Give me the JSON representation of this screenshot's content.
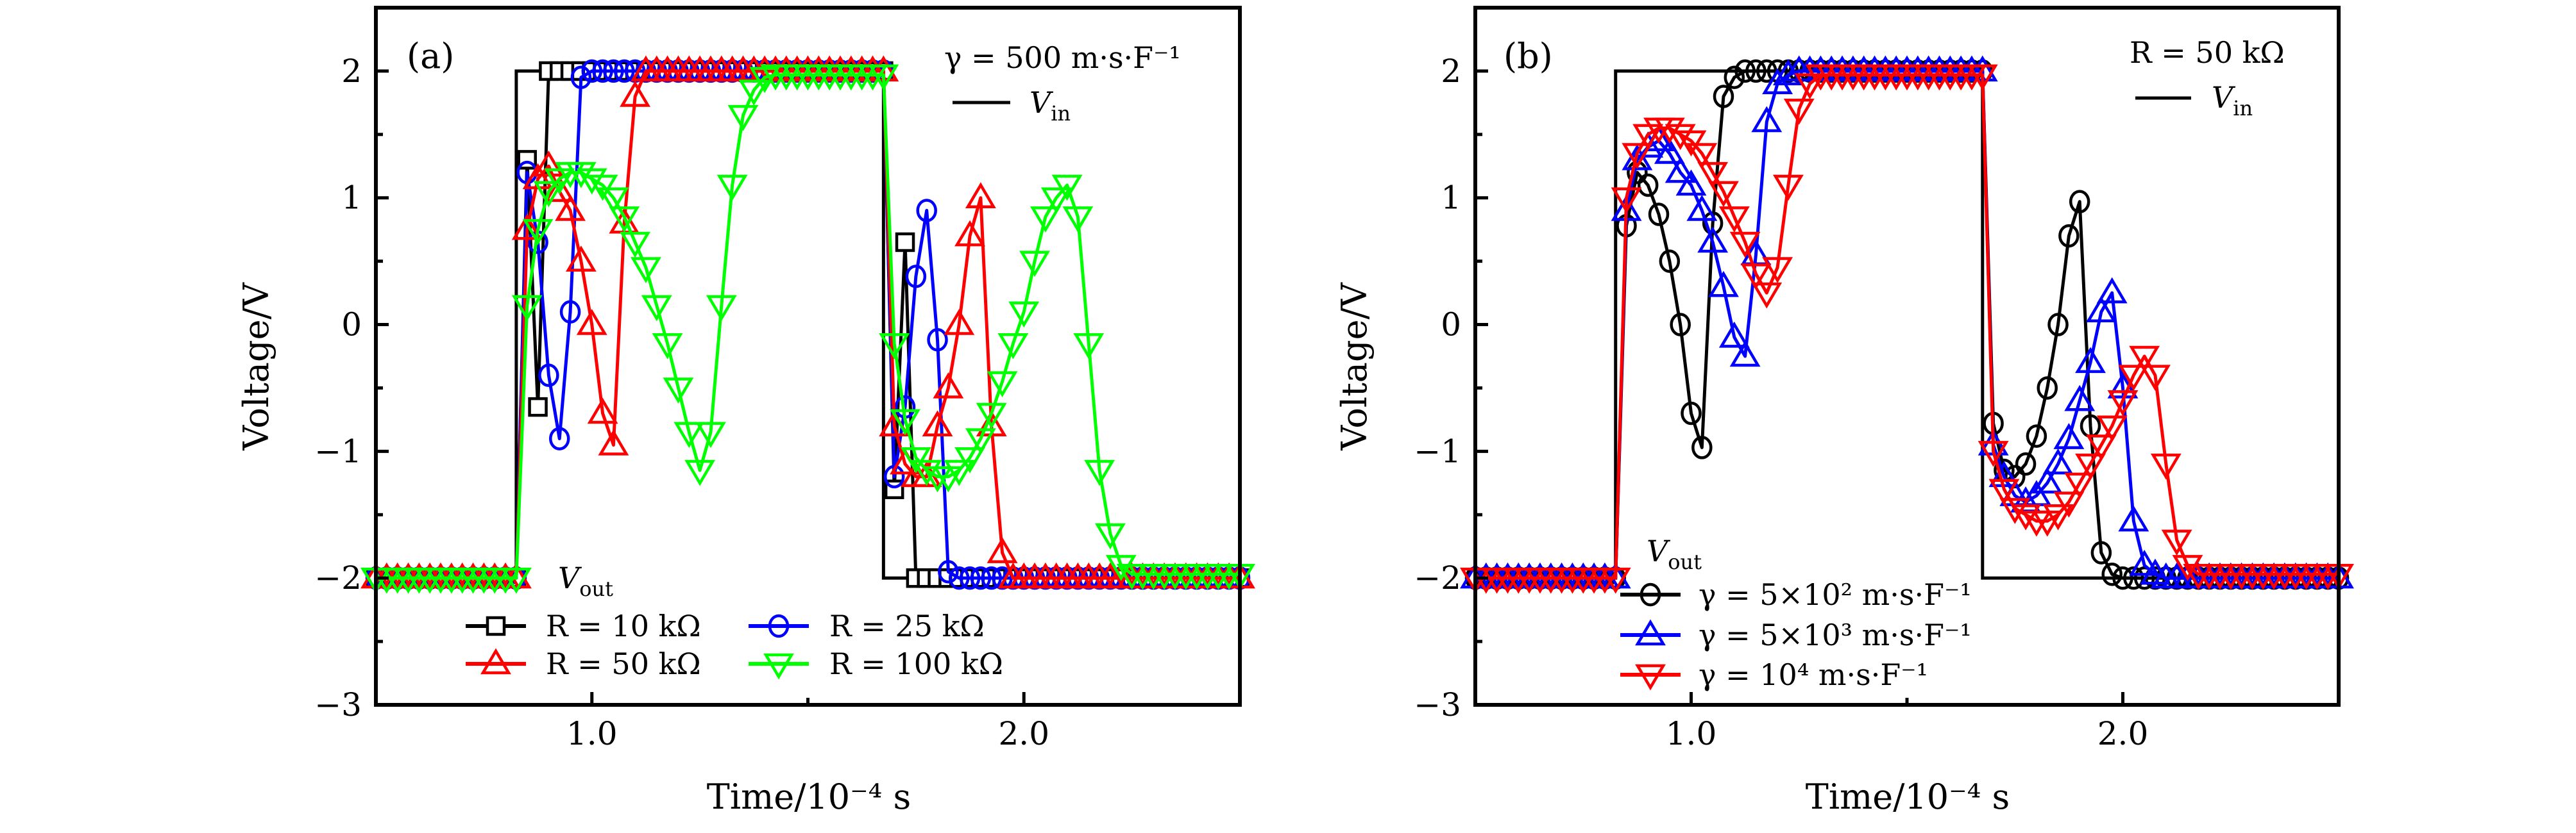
{
  "colors": {
    "black": "#000000",
    "blue": "#0000ff",
    "red": "#ff0000",
    "green": "#00ff00"
  },
  "chart_data": [
    {
      "type": "line",
      "panel_label": "(a)",
      "annotation": "γ = 500 m·s·F⁻¹",
      "xlabel": "Time/10⁻⁴ s",
      "ylabel": "Voltage/V",
      "xlim": [
        0.5,
        2.5
      ],
      "ylim": [
        -3,
        2.5
      ],
      "x_ticks": [
        1.0,
        2.0
      ],
      "x_tick_labels": [
        "1.0",
        "2.0"
      ],
      "y_ticks": [
        -3,
        -2,
        -1,
        0,
        1,
        2
      ],
      "y_tick_labels": [
        "−3",
        "−2",
        "−1",
        "0",
        "1",
        "2"
      ],
      "grid": false,
      "vin": {
        "label_main": "V",
        "label_sub": "in",
        "t": [
          0.5,
          0.825,
          0.825,
          1.675,
          1.675,
          2.5
        ],
        "v": [
          -2,
          -2,
          2,
          2,
          -2,
          -2
        ]
      },
      "vout_label": {
        "main": "V",
        "sub": "out"
      },
      "t0": 0.5,
      "dt": 0.025,
      "series": [
        {
          "name": "R = 10 kΩ",
          "color": "black",
          "marker": "square",
          "values": [
            -2,
            -2,
            -2,
            -2,
            -2,
            -2,
            -2,
            -2,
            -2,
            -2,
            -2,
            -2,
            -2,
            -2,
            1.3,
            -0.65,
            2,
            2,
            2,
            2,
            2,
            2,
            2,
            2,
            2,
            2,
            2,
            2,
            2,
            2,
            2,
            2,
            2,
            2,
            2,
            2,
            2,
            2,
            2,
            2,
            2,
            2,
            2,
            2,
            2,
            2,
            2,
            2,
            -1.3,
            0.65,
            -2,
            -2,
            -2,
            -2,
            -2,
            -2,
            -2,
            -2,
            -2,
            -2,
            -2,
            -2,
            -2,
            -2,
            -2,
            -2,
            -2,
            -2,
            -2,
            -2,
            -2,
            -2,
            -2,
            -2,
            -2,
            -2,
            -2,
            -2,
            -2,
            -2,
            -2
          ]
        },
        {
          "name": "R = 25 kΩ",
          "color": "blue",
          "marker": "circle",
          "values": [
            -2,
            -2,
            -2,
            -2,
            -2,
            -2,
            -2,
            -2,
            -2,
            -2,
            -2,
            -2,
            -2,
            -2,
            1.2,
            0.65,
            -0.4,
            -0.9,
            0.1,
            1.95,
            2,
            2,
            2,
            2,
            2,
            2,
            2,
            2,
            2,
            2,
            2,
            2,
            2,
            2,
            2,
            2,
            2,
            2,
            2,
            2,
            2,
            2,
            2,
            2,
            2,
            2,
            2,
            2,
            -1.2,
            -0.65,
            0.38,
            0.9,
            -0.12,
            -1.95,
            -2,
            -2,
            -2,
            -2,
            -2,
            -2,
            -2,
            -2,
            -2,
            -2,
            -2,
            -2,
            -2,
            -2,
            -2,
            -2,
            -2,
            -2,
            -2,
            -2,
            -2,
            -2,
            -2,
            -2,
            -2,
            -2,
            -2
          ]
        },
        {
          "name": "R = 50 kΩ",
          "color": "red",
          "marker": "triangle-up",
          "values": [
            -2,
            -2,
            -2,
            -2,
            -2,
            -2,
            -2,
            -2,
            -2,
            -2,
            -2,
            -2,
            -2,
            -2,
            0.75,
            1.15,
            1.25,
            1.05,
            0.9,
            0.5,
            0.0,
            -0.7,
            -0.95,
            0.8,
            1.8,
            2,
            2,
            2,
            2,
            2,
            2,
            2,
            2,
            2,
            2,
            2,
            2,
            2,
            2,
            2,
            2,
            2,
            2,
            2,
            2,
            2,
            2,
            2,
            -0.8,
            -1.1,
            -1.2,
            -1.2,
            -0.8,
            -0.5,
            0.0,
            0.7,
            1.0,
            -0.8,
            -1.8,
            -2,
            -2,
            -2,
            -2,
            -2,
            -2,
            -2,
            -2,
            -2,
            -2,
            -2,
            -2,
            -2,
            -2,
            -2,
            -2,
            -2,
            -2,
            -2,
            -2,
            -2,
            -2
          ]
        },
        {
          "name": "R = 100 kΩ",
          "color": "green",
          "marker": "triangle-down",
          "values": [
            -2,
            -2,
            -2,
            -2,
            -2,
            -2,
            -2,
            -2,
            -2,
            -2,
            -2,
            -2,
            -2,
            -2,
            0.15,
            0.75,
            1.05,
            1.15,
            1.2,
            1.2,
            1.15,
            1.1,
            1.0,
            0.85,
            0.65,
            0.45,
            0.15,
            -0.15,
            -0.5,
            -0.85,
            -1.15,
            -0.85,
            0.15,
            1.1,
            1.65,
            1.85,
            1.95,
            1.97,
            1.97,
            1.97,
            1.97,
            1.97,
            1.97,
            1.97,
            1.97,
            1.97,
            1.97,
            1.97,
            -0.15,
            -0.75,
            -1.05,
            -1.15,
            -1.2,
            -1.2,
            -1.15,
            -1.05,
            -0.9,
            -0.7,
            -0.45,
            -0.15,
            0.1,
            0.5,
            0.85,
            1.0,
            1.1,
            0.85,
            -0.15,
            -1.15,
            -1.65,
            -1.9,
            -1.97,
            -1.97,
            -1.97,
            -1.97,
            -1.97,
            -1.97,
            -1.97,
            -1.97,
            -1.97,
            -1.97,
            -1.97
          ]
        }
      ]
    },
    {
      "type": "line",
      "panel_label": "(b)",
      "annotation": "R = 50 kΩ",
      "xlabel": "Time/10⁻⁴ s",
      "ylabel": "Voltage/V",
      "xlim": [
        0.5,
        2.5
      ],
      "ylim": [
        -3,
        2.5
      ],
      "x_ticks": [
        1.0,
        2.0
      ],
      "x_tick_labels": [
        "1.0",
        "2.0"
      ],
      "y_ticks": [
        -3,
        -2,
        -1,
        0,
        1,
        2
      ],
      "y_tick_labels": [
        "−3",
        "−2",
        "−1",
        "0",
        "1",
        "2"
      ],
      "grid": false,
      "vin": {
        "label_main": "V",
        "label_sub": "in",
        "t": [
          0.5,
          0.825,
          0.825,
          1.675,
          1.675,
          2.5
        ],
        "v": [
          -2,
          -2,
          2,
          2,
          -2,
          -2
        ]
      },
      "vout_label": {
        "main": "V",
        "sub": "out"
      },
      "t0": 0.5,
      "dt": 0.025,
      "series": [
        {
          "name": "γ = 5×10² m·s·F⁻¹",
          "color": "black",
          "marker": "circle",
          "values": [
            -2,
            -2,
            -2,
            -2,
            -2,
            -2,
            -2,
            -2,
            -2,
            -2,
            -2,
            -2,
            -2,
            -2,
            0.78,
            1.2,
            1.1,
            0.87,
            0.5,
            0.0,
            -0.7,
            -0.97,
            0.8,
            1.8,
            1.95,
            2,
            2,
            2,
            2,
            2,
            2,
            2,
            2,
            2,
            2,
            2,
            2,
            2,
            2,
            2,
            2,
            2,
            2,
            2,
            2,
            2,
            2,
            2,
            -0.78,
            -1.15,
            -1.2,
            -1.1,
            -0.88,
            -0.5,
            0.0,
            0.7,
            0.97,
            -0.8,
            -1.8,
            -1.97,
            -2,
            -2,
            -2,
            -2,
            -2,
            -2,
            -2,
            -2,
            -2,
            -2,
            -2,
            -2,
            -2,
            -2,
            -2,
            -2,
            -2,
            -2,
            -2,
            -2,
            -2
          ]
        },
        {
          "name": "γ = 5×10³ m·s·F⁻¹",
          "color": "blue",
          "marker": "triangle-up",
          "values": [
            -2,
            -2,
            -2,
            -2,
            -2,
            -2,
            -2,
            -2,
            -2,
            -2,
            -2,
            -2,
            -2,
            -2,
            0.9,
            1.3,
            1.4,
            1.45,
            1.35,
            1.2,
            1.1,
            0.9,
            0.65,
            0.3,
            -0.1,
            -0.25,
            0.55,
            1.6,
            1.9,
            1.97,
            2,
            2,
            2,
            2,
            2,
            2,
            2,
            2,
            2,
            2,
            2,
            2,
            2,
            2,
            2,
            2,
            2,
            2,
            -0.95,
            -1.2,
            -1.35,
            -1.4,
            -1.35,
            -1.25,
            -1.1,
            -0.9,
            -0.6,
            -0.3,
            0.1,
            0.25,
            -0.5,
            -1.55,
            -1.9,
            -1.97,
            -2,
            -2,
            -2,
            -2,
            -2,
            -2,
            -2,
            -2,
            -2,
            -2,
            -2,
            -2,
            -2,
            -2,
            -2,
            -2,
            -2
          ]
        },
        {
          "name": "γ = 10⁴ m·s·F⁻¹",
          "color": "red",
          "marker": "triangle-down",
          "values": [
            -2,
            -2,
            -2,
            -2,
            -2,
            -2,
            -2,
            -2,
            -2,
            -2,
            -2,
            -2,
            -2,
            -2,
            1.0,
            1.35,
            1.5,
            1.55,
            1.55,
            1.5,
            1.45,
            1.35,
            1.2,
            1.05,
            0.85,
            0.65,
            0.4,
            0.25,
            0.45,
            1.1,
            1.7,
            1.9,
            1.97,
            1.97,
            1.97,
            1.97,
            1.97,
            1.97,
            1.97,
            1.97,
            1.97,
            1.97,
            1.97,
            1.97,
            1.97,
            1.97,
            1.97,
            1.97,
            -1.0,
            -1.3,
            -1.45,
            -1.5,
            -1.55,
            -1.55,
            -1.5,
            -1.4,
            -1.25,
            -1.1,
            -0.95,
            -0.8,
            -0.6,
            -0.4,
            -0.25,
            -0.4,
            -1.1,
            -1.7,
            -1.9,
            -1.97,
            -1.97,
            -1.97,
            -1.97,
            -1.97,
            -1.97,
            -1.97,
            -1.97,
            -1.97,
            -1.97,
            -1.97,
            -1.97,
            -1.97,
            -1.97
          ]
        }
      ]
    }
  ]
}
